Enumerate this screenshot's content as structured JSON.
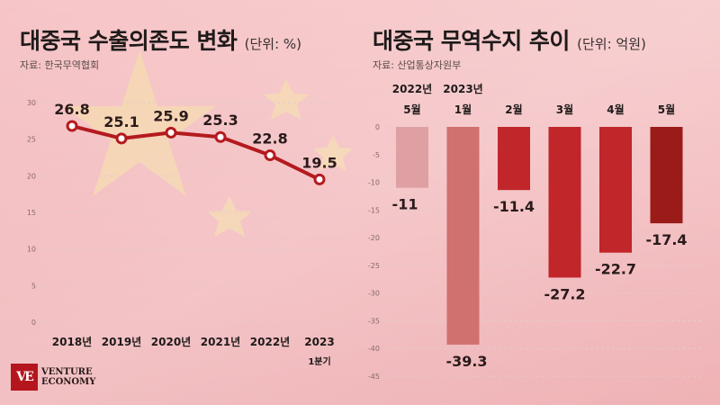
{
  "colors": {
    "line": "#b41a1e",
    "bar_light": "#dea0a2",
    "bar_mid": "#d0706f",
    "bar_red": "#c0262a",
    "bar_dark": "#9a1b18"
  },
  "logo": {
    "mark": "VE",
    "line1": "VENTURE",
    "line2": "ECONOMY"
  },
  "chart_data": [
    {
      "type": "line",
      "title": "대중국 수출의존도 변화",
      "unit_label": "(단위: %)",
      "source": "자료: 한국무역협회",
      "categories": [
        "2018년",
        "2019년",
        "2020년",
        "2021년",
        "2022년",
        "2023"
      ],
      "category_sublabels": [
        "",
        "",
        "",
        "",
        "",
        "1분기"
      ],
      "values": [
        26.8,
        25.1,
        25.9,
        25.3,
        22.8,
        19.5
      ],
      "value_labels": [
        "26.8",
        "25.1",
        "25.9",
        "25.3",
        "22.8",
        "19.5"
      ],
      "ylim": [
        0,
        30
      ],
      "yticks": [
        "0",
        "5",
        "10",
        "15",
        "20",
        "25",
        "30"
      ],
      "grid": true
    },
    {
      "type": "bar",
      "title": "대중국 무역수지 추이",
      "unit_label": "(단위: 억원)",
      "source": "자료: 산업통상자원부",
      "category_years": [
        "2022년",
        "2023년",
        "",
        "",
        "",
        ""
      ],
      "categories": [
        "5월",
        "1월",
        "2월",
        "3월",
        "4월",
        "5월"
      ],
      "values": [
        -11,
        -39.3,
        -11.4,
        -27.2,
        -22.7,
        -17.4
      ],
      "value_labels": [
        "-11",
        "-39.3",
        "-11.4",
        "-27.2",
        "-22.7",
        "-17.4"
      ],
      "ylim": [
        -45,
        0
      ],
      "yticks": [
        "0",
        "-5",
        "-10",
        "-15",
        "-20",
        "-25",
        "-30",
        "-35",
        "-40",
        "-45"
      ],
      "grid": true
    }
  ]
}
